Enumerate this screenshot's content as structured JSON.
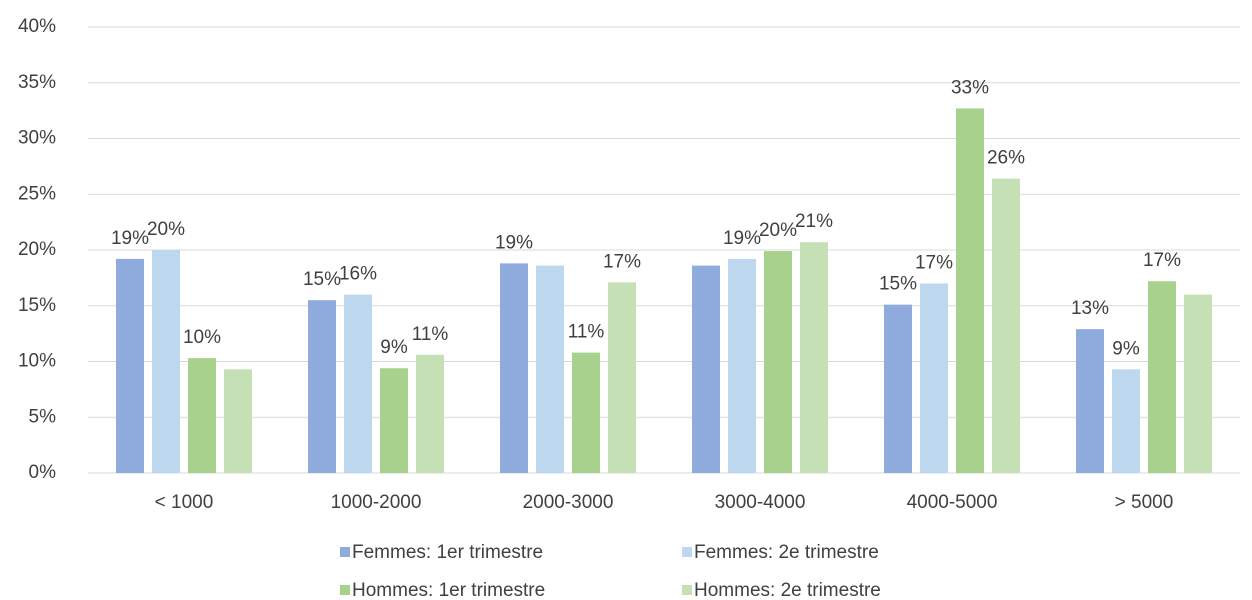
{
  "chart_data": {
    "type": "bar",
    "categories": [
      "< 1000",
      "1000-2000",
      "2000-3000",
      "3000-4000",
      "4000-5000",
      "> 5000"
    ],
    "series": [
      {
        "name": "Femmes: 1er trimestre",
        "color": "#8faadc",
        "values": [
          19.2,
          15.5,
          18.8,
          18.6,
          15.1,
          12.9
        ],
        "value_labels": [
          "19%",
          "15%",
          "19%",
          null,
          "15%",
          "13%"
        ]
      },
      {
        "name": "Femmes: 2e trimestre",
        "color": "#bdd7ee",
        "values": [
          20.0,
          16.0,
          18.6,
          19.2,
          17.0,
          9.3
        ],
        "value_labels": [
          "20%",
          "16%",
          null,
          "19%",
          "17%",
          "9%"
        ]
      },
      {
        "name": "Hommes: 1er trimestre",
        "color": "#a9d18e",
        "values": [
          10.3,
          9.4,
          10.8,
          19.9,
          32.7,
          17.2
        ],
        "value_labels": [
          "10%",
          "9%",
          "11%",
          "20%",
          "33%",
          "17%"
        ]
      },
      {
        "name": "Hommes: 2e trimestre",
        "color": "#c5e0b4",
        "values": [
          9.3,
          10.6,
          17.1,
          20.7,
          26.4,
          16.0
        ],
        "value_labels": [
          null,
          "11%",
          "17%",
          "21%",
          "26%",
          null
        ]
      }
    ],
    "ylim": [
      0,
      40
    ],
    "yticks": [
      {
        "value": 0,
        "label": "0%"
      },
      {
        "value": 5,
        "label": "5%"
      },
      {
        "value": 10,
        "label": "10%"
      },
      {
        "value": 15,
        "label": "15%"
      },
      {
        "value": 20,
        "label": "20%"
      },
      {
        "value": 25,
        "label": "25%"
      },
      {
        "value": 30,
        "label": "30%"
      },
      {
        "value": 35,
        "label": "35%"
      },
      {
        "value": 40,
        "label": "40%"
      }
    ],
    "grid": true,
    "legend": "bottom"
  }
}
